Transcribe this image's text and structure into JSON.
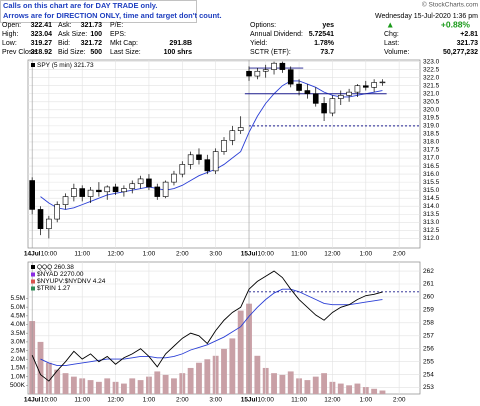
{
  "notes": [
    "Calls on this chart are for DAY TRADE only.",
    "Arrows are for DIRECTION ONLY, time and target don't count."
  ],
  "credit": "© StockCharts.com",
  "quote": {
    "date": "Wednesday 15-Jul-2020 1:36 pm",
    "change_pct": "+0.88%",
    "columns": [
      [
        {
          "label": "Open:",
          "value": "322.41"
        },
        {
          "label": "High:",
          "value": "323.04"
        },
        {
          "label": "Low:",
          "value": "319.27"
        },
        {
          "label": "Prev Close:",
          "value": "318.92"
        }
      ],
      [
        {
          "label": "Ask:",
          "value": "321.73"
        },
        {
          "label": "Ask Size:",
          "value": "100"
        },
        {
          "label": "Bid:",
          "value": "321.72"
        },
        {
          "label": "Bid Size:",
          "value": "500"
        }
      ],
      [
        {
          "label": "P/E:"
        },
        {
          "label": "EPS:"
        },
        {
          "label": "Mkt Cap:",
          "value": "291.8B"
        },
        {
          "label": "Last Size:",
          "value": "100 shrs"
        }
      ],
      [
        {
          "label": "Options:",
          "value": "yes"
        },
        {
          "label": "Annual Dividend:",
          "value": "5.72541"
        },
        {
          "label": "Yield:",
          "value": "1.78%"
        },
        {
          "label": "SCTR (ETF):",
          "value": "73.7"
        }
      ],
      [
        {
          "label": "Chg:",
          "value": "+2.81"
        },
        {
          "label": "Last:",
          "value": "321.73"
        },
        {
          "label": "Volume:",
          "value": "50,277,232"
        }
      ]
    ]
  },
  "chart_data": [
    {
      "type": "candlestick",
      "xlim": [
        -0.5,
        46.5
      ],
      "xticks": [
        {
          "value": 0,
          "label": "14Jul"
        },
        {
          "value": 2,
          "label": "10:00"
        },
        {
          "value": 6,
          "label": "11:00"
        },
        {
          "value": 10,
          "label": "12:00"
        },
        {
          "value": 14,
          "label": "1:00"
        },
        {
          "value": 18,
          "label": "2:00"
        },
        {
          "value": 22,
          "label": "3:00"
        },
        {
          "value": 26,
          "label": "15Jul"
        },
        {
          "value": 28,
          "label": "10:00"
        },
        {
          "value": 32,
          "label": "11:00"
        },
        {
          "value": 36,
          "label": "12:00"
        },
        {
          "value": 40,
          "label": "1:00"
        },
        {
          "value": 44,
          "label": "2:00"
        }
      ],
      "ylim": [
        311.4,
        323.1
      ],
      "yticks": [
        {
          "value": 312,
          "label": "312.0"
        },
        312.5,
        {
          "value": 313,
          "label": "313.0"
        },
        313.5,
        {
          "value": 314,
          "label": "314.0"
        },
        314.5,
        {
          "value": 315,
          "label": "315.0"
        },
        315.5,
        {
          "value": 316,
          "label": "316.0"
        },
        316.5,
        {
          "value": 317,
          "label": "317.0"
        },
        317.5,
        {
          "value": 318,
          "label": "318.0"
        },
        318.5,
        {
          "value": 319,
          "label": "319.0"
        },
        319.5,
        {
          "value": 320,
          "label": "320.0"
        },
        320.5,
        {
          "value": 321,
          "label": "321.0"
        },
        321.5,
        {
          "value": 322,
          "label": "322.0"
        },
        322.5,
        {
          "value": 323,
          "label": "323.0"
        }
      ],
      "grid": true,
      "series": [
        {
          "name": "SPY (5 min) 321.73",
          "color": "#000000",
          "open": [
            315.6,
            313.8,
            312.6,
            313.2,
            314.1,
            314.6,
            315.1,
            314.6,
            315.0,
            314.9,
            315.2,
            314.9,
            315.1,
            315.4,
            315.7,
            315.2,
            314.6,
            315.5,
            316.0,
            316.6,
            317.2,
            316.9,
            316.2,
            317.4,
            318.1,
            318.7,
            322.4,
            322.1,
            322.4,
            322.5,
            322.9,
            322.5,
            321.6,
            321.2,
            321.0,
            320.4,
            319.8,
            320.7,
            320.9,
            321.1,
            321.5,
            321.4,
            321.7
          ],
          "high": [
            315.8,
            314.0,
            313.4,
            314.3,
            314.8,
            315.4,
            315.3,
            315.2,
            315.5,
            315.3,
            315.4,
            315.3,
            315.6,
            315.9,
            316.0,
            315.4,
            315.6,
            316.2,
            316.8,
            317.4,
            317.6,
            317.2,
            317.6,
            318.3,
            319.0,
            319.6,
            322.7,
            322.6,
            322.8,
            323.0,
            323.0,
            322.7,
            321.9,
            321.6,
            321.4,
            320.8,
            320.9,
            321.2,
            321.3,
            321.6,
            321.8,
            321.9,
            321.9
          ],
          "low": [
            313.5,
            312.2,
            312.0,
            313.0,
            313.8,
            314.3,
            314.3,
            314.2,
            314.6,
            314.4,
            314.7,
            314.6,
            314.8,
            315.1,
            315.0,
            314.4,
            314.5,
            315.3,
            315.8,
            316.3,
            316.6,
            316.0,
            316.0,
            317.2,
            317.8,
            318.5,
            321.8,
            321.9,
            322.0,
            322.2,
            322.3,
            321.4,
            320.9,
            320.7,
            320.2,
            319.3,
            319.6,
            320.3,
            320.5,
            320.8,
            321.2,
            321.1,
            321.5
          ],
          "close": [
            313.8,
            312.6,
            313.2,
            314.1,
            314.6,
            315.1,
            314.6,
            315.0,
            314.9,
            315.2,
            314.9,
            315.1,
            315.4,
            315.7,
            315.2,
            314.6,
            315.5,
            316.0,
            316.6,
            317.2,
            316.9,
            316.2,
            317.4,
            318.1,
            318.7,
            318.9,
            322.1,
            322.4,
            322.5,
            322.9,
            322.5,
            321.6,
            321.2,
            321.0,
            320.4,
            319.8,
            320.7,
            320.9,
            321.1,
            321.5,
            321.4,
            321.7,
            321.73
          ]
        }
      ],
      "ma_color": "#2b3fd6",
      "ma_values": [
        null,
        314.6,
        314.2,
        313.9,
        313.8,
        313.9,
        314.1,
        314.3,
        314.5,
        314.7,
        314.8,
        314.9,
        315.0,
        315.1,
        315.2,
        315.1,
        315.0,
        315.1,
        315.3,
        315.6,
        315.9,
        316.1,
        316.3,
        316.6,
        317.0,
        317.4,
        318.6,
        319.6,
        320.4,
        321.0,
        321.5,
        321.8,
        321.8,
        321.6,
        321.4,
        321.1,
        320.9,
        320.8,
        320.8,
        320.9,
        321.0,
        321.1,
        321.2
      ],
      "levels": [
        {
          "value": 322.6,
          "from": 26,
          "to": 32.5,
          "style": "solid"
        },
        {
          "value": 321.0,
          "from": 25.5,
          "to": 42.5,
          "style": "solid"
        },
        {
          "value": 319.0,
          "from": 26,
          "to": 46.5,
          "style": "dashed"
        }
      ]
    },
    {
      "type": "line",
      "xlim": [
        -0.5,
        46.5
      ],
      "xticks": [
        {
          "value": 0,
          "label": "14Jul"
        },
        {
          "value": 2,
          "label": "10:00"
        },
        {
          "value": 6,
          "label": "11:00"
        },
        {
          "value": 10,
          "label": "12:00"
        },
        {
          "value": 14,
          "label": "1:00"
        },
        {
          "value": 18,
          "label": "2:00"
        },
        {
          "value": 22,
          "label": "3:00"
        },
        {
          "value": 26,
          "label": "15Jul"
        },
        {
          "value": 28,
          "label": "10:00"
        },
        {
          "value": 32,
          "label": "11:00"
        },
        {
          "value": 36,
          "label": "12:00"
        },
        {
          "value": 40,
          "label": "1:00"
        },
        {
          "value": 44,
          "label": "2:00"
        }
      ],
      "ylim": [
        252.5,
        262.7
      ],
      "yticks": [
        253,
        254,
        255,
        256,
        257,
        258,
        259,
        260,
        261,
        262
      ],
      "y2lim": [
        0,
        7600000
      ],
      "y2ticks": [
        {
          "value": 500000,
          "label": "500K"
        },
        {
          "value": 1000000,
          "label": "1.0M"
        },
        {
          "value": 1500000,
          "label": "1.5M"
        },
        {
          "value": 2000000,
          "label": "2.0M"
        },
        {
          "value": 2500000,
          "label": "2.5M"
        },
        {
          "value": 3000000,
          "label": "3.0M"
        },
        {
          "value": 3500000,
          "label": "3.5M"
        },
        {
          "value": 4000000,
          "label": "4.0M"
        },
        {
          "value": 4500000,
          "label": "4.5M"
        },
        {
          "value": 5000000,
          "label": "5.0M"
        },
        {
          "value": 5500000,
          "label": "5.5M"
        }
      ],
      "grid": true,
      "series": [
        {
          "name": "QQQ 260.38",
          "color": "#000000",
          "values": [
            255.5,
            254.0,
            253.5,
            254.3,
            255.0,
            255.8,
            255.2,
            255.6,
            255.0,
            255.4,
            254.8,
            255.3,
            255.6,
            256.0,
            255.4,
            254.6,
            255.6,
            256.2,
            256.8,
            257.2,
            257.0,
            256.4,
            257.4,
            258.2,
            258.8,
            259.2,
            260.6,
            261.2,
            261.6,
            262.0,
            261.5,
            260.6,
            259.8,
            259.2,
            258.6,
            258.2,
            258.8,
            259.2,
            259.4,
            259.8,
            260.1,
            260.2,
            260.38
          ]
        }
      ],
      "legend_extra": [
        {
          "name": "$NYAD 2270.00",
          "color": "#8a2be2"
        },
        {
          "name": "$NYUPV:$NYDNV 4.24",
          "color": "#d9534f"
        },
        {
          "name": "$TRIN 1.27",
          "color": "#2e8b57"
        }
      ],
      "ma_color": "#2b3fd6",
      "ma_values": [
        null,
        255.2,
        254.9,
        254.7,
        254.7,
        254.8,
        254.9,
        255.0,
        255.1,
        255.2,
        255.2,
        255.2,
        255.3,
        255.4,
        255.4,
        255.3,
        255.3,
        255.4,
        255.6,
        255.9,
        256.1,
        256.3,
        256.6,
        256.9,
        257.3,
        257.7,
        258.5,
        259.2,
        259.8,
        260.3,
        260.6,
        260.6,
        260.4,
        260.1,
        259.8,
        259.5,
        259.4,
        259.4,
        259.4,
        259.5,
        259.6,
        259.7,
        259.8
      ],
      "volume_color": "#c9a0a6",
      "volume_values": [
        4200000,
        3000000,
        1800000,
        1400000,
        1200000,
        1000000,
        900000,
        800000,
        700000,
        900000,
        700000,
        600000,
        900000,
        800000,
        1000000,
        1300000,
        1100000,
        900000,
        1200000,
        1500000,
        1800000,
        2000000,
        2200000,
        2600000,
        3200000,
        4800000,
        5200000,
        2200000,
        1500000,
        1200000,
        1100000,
        1300000,
        900000,
        800000,
        1000000,
        1200000,
        700000,
        600000,
        500000,
        600000,
        400000,
        300000,
        200000
      ],
      "levels": [
        {
          "value": 260.4,
          "from": 26,
          "to": 46.5,
          "style": "dashed"
        }
      ]
    }
  ]
}
